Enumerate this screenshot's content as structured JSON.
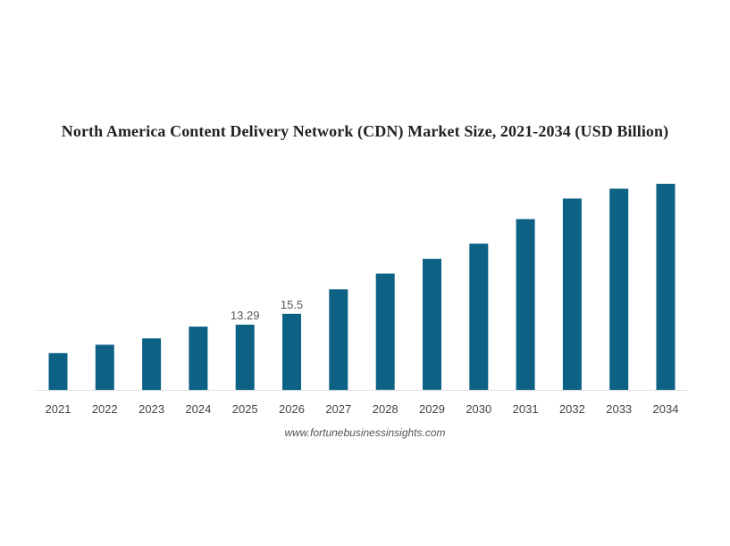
{
  "chart_data": {
    "type": "bar",
    "title": "North America Content Delivery Network (CDN) Market Size, 2021-2034 (USD Billion)",
    "categories": [
      "2021",
      "2022",
      "2023",
      "2024",
      "2025",
      "2026",
      "2027",
      "2028",
      "2029",
      "2030",
      "2031",
      "2032",
      "2033",
      "2034"
    ],
    "values": [
      7.5,
      9.2,
      10.5,
      12.9,
      13.29,
      15.5,
      20.5,
      23.7,
      26.7,
      29.8,
      34.8,
      39.0,
      41.0,
      42.0
    ],
    "data_labels": [
      {
        "category": "2025",
        "text": "13.29"
      },
      {
        "category": "2026",
        "text": "15.5"
      }
    ],
    "xlabel": "",
    "ylabel": "",
    "ylim": [
      0,
      44
    ],
    "grid": false,
    "legend": "none",
    "bar_color": "#0d6184",
    "axis_color": "#e0e0e0"
  },
  "source": "www.fortunebusinessinsights.com"
}
